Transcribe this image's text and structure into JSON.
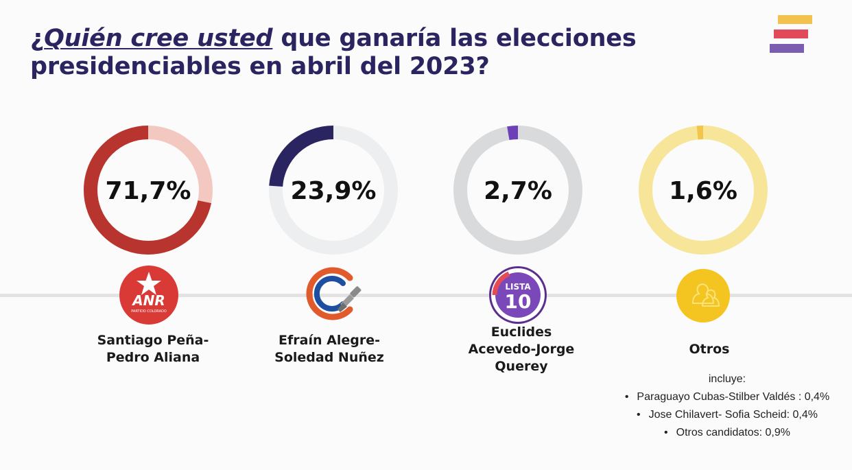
{
  "title": {
    "q_open": "¿",
    "highlight": "Quién cree usted",
    "rest_line1": "que ganaría las elecciones",
    "line2": "presidenciables en abril del 2023?"
  },
  "brand": {
    "colors": [
      "#f2c14e",
      "#e04a5a",
      "#7a5cb0"
    ]
  },
  "chart_data": {
    "type": "donut",
    "title": "¿Quién cree usted que ganaría las elecciones presidenciables en abril del 2023?",
    "unit": "%",
    "series": [
      {
        "name": "Santiago Peña- Pedro Aliana",
        "value": 71.7,
        "label": "71,7%",
        "color": "#b8352f",
        "track": "#f3c8c0"
      },
      {
        "name": "Efraín Alegre- Soledad Nuñez",
        "value": 23.9,
        "label": "23,9%",
        "color": "#2a2560",
        "track": "#eceef0"
      },
      {
        "name": "Euclides Acevedo-Jorge Querey",
        "value": 2.7,
        "label": "2,7%",
        "color": "#6e40b8",
        "track": "#d9dadc"
      },
      {
        "name": "Otros",
        "value": 1.6,
        "label": "1,6%",
        "color": "#f2c64a",
        "track": "#f7e59a"
      }
    ]
  },
  "candidates": [
    {
      "name": "Santiago Peña-\nPedro Aliana",
      "logo": "anr-logo",
      "logo_text": "ANR",
      "logo_sub": "PARTIDO COLORADO",
      "logo_color": "#d93a36"
    },
    {
      "name": "Efraín Alegre-\nSoledad Nuñez",
      "logo": "concertacion-logo",
      "logo_color": "#e15a2b"
    },
    {
      "name": "Euclides\nAcevedo-Jorge\nQuerey",
      "logo": "lista-10-logo",
      "logo_text": "LISTA",
      "logo_num": "10",
      "logo_color": "#7a48b8"
    },
    {
      "name": "Otros",
      "logo": "otros-logo",
      "logo_color": "#f4c521"
    }
  ],
  "otros_notes": {
    "intro": "incluye:",
    "items": [
      "Paraguayo Cubas-Stilber Valdés : 0,4%",
      "Jose Chilavert- Sofia Scheid: 0,4%",
      "Otros candidatos: 0,9%"
    ]
  }
}
